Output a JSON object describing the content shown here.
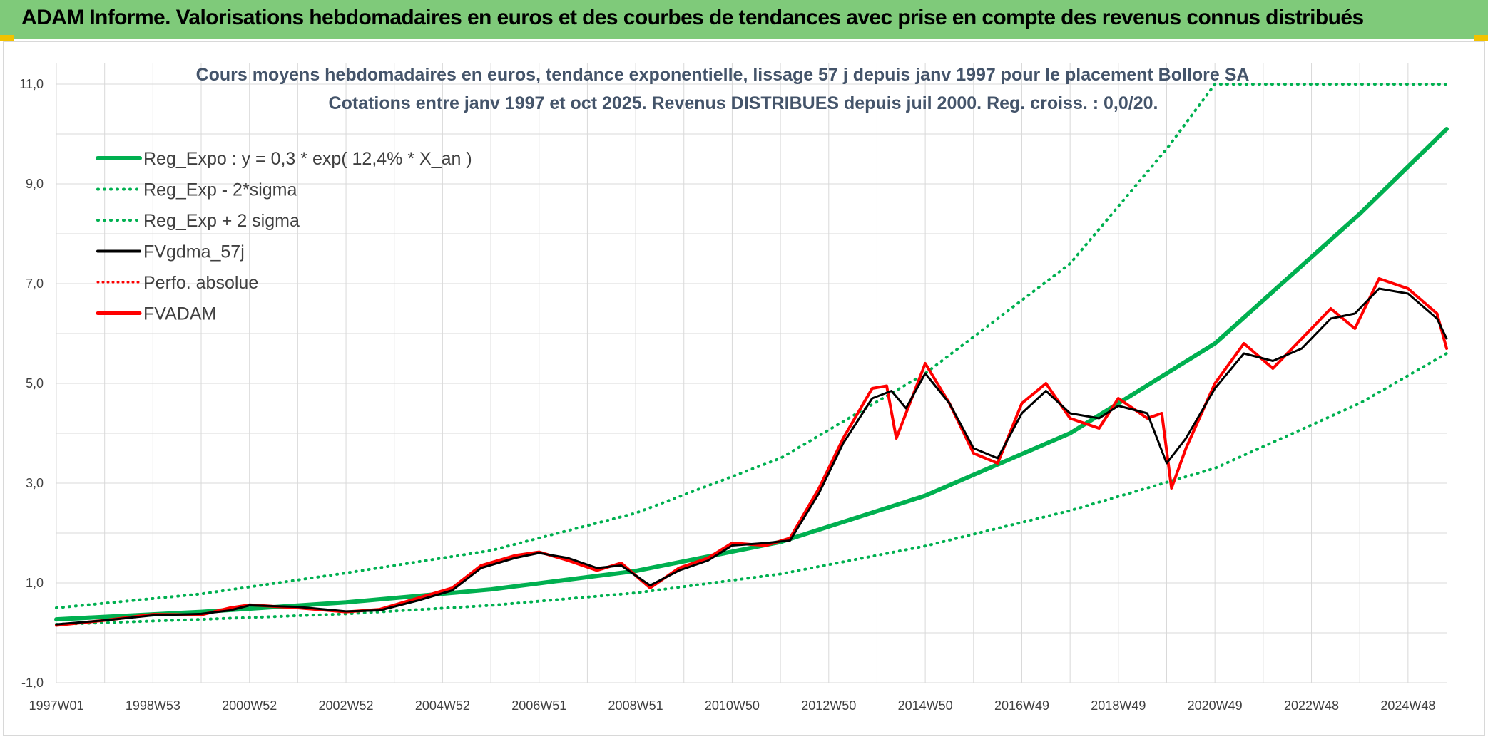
{
  "banner": {
    "title": "ADAM Informe. Valorisations hebdomadaires en euros et des courbes de tendances avec prise en compte des revenus connus distribués"
  },
  "colors": {
    "banner": "#7fca7a",
    "trend": "#00b050",
    "smoothed": "#000000",
    "adam": "#ff0000",
    "grid": "#d9d9d9"
  },
  "chart_data": {
    "type": "line",
    "title": "Cours moyens hebdomadaires en euros, tendance exponentielle, lissage 57 j depuis janv 1997 pour le placement Bollore SA",
    "subtitle": "Cotations entre janv 1997 et oct 2025. Revenus DISTRIBUES depuis juil 2000. Reg. croiss. : 0,0/20.",
    "xlabel": "",
    "ylabel": "",
    "ylim": [
      -1,
      11
    ],
    "y_ticks": [
      "-1,0",
      "1,0",
      "3,0",
      "5,0",
      "7,0",
      "9,0",
      "11,0"
    ],
    "x_tick_labels": [
      "1997W01",
      "1998W53",
      "2000W52",
      "2002W52",
      "2004W52",
      "2006W51",
      "2008W51",
      "2010W50",
      "2012W50",
      "2014W50",
      "2016W49",
      "2018W49",
      "2020W49",
      "2022W48",
      "2024W48"
    ],
    "x_tick_years": [
      1997.0,
      1999.0,
      2001.0,
      2003.0,
      2005.0,
      2007.0,
      2009.0,
      2011.0,
      2013.0,
      2015.0,
      2017.0,
      2019.0,
      2021.0,
      2023.0,
      2025.0
    ],
    "x_range": [
      1997.0,
      2025.8
    ],
    "legend": [
      {
        "label": "Reg_Expo : y = 0,3 * exp( 12,4% *  X_an )",
        "style": "solid-green"
      },
      {
        "label": "Reg_Exp - 2*sigma",
        "style": "dotted-green"
      },
      {
        "label": "Reg_Exp + 2 sigma",
        "style": "dotted-green"
      },
      {
        "label": "FVgdma_57j",
        "style": "solid-black"
      },
      {
        "label": "Perfo. absolue",
        "style": "dotted-red"
      },
      {
        "label": "FVADAM",
        "style": "solid-red"
      }
    ],
    "series": [
      {
        "name": "Reg_Expo",
        "x": [
          1997.0,
          2000.0,
          2003.0,
          2006.0,
          2009.0,
          2012.0,
          2015.0,
          2018.0,
          2021.0,
          2024.0,
          2025.8
        ],
        "values": [
          0.27,
          0.42,
          0.61,
          0.87,
          1.24,
          1.82,
          2.75,
          4.0,
          5.8,
          8.4,
          10.1
        ]
      },
      {
        "name": "Reg_Exp - 2*sigma",
        "x": [
          1997.0,
          2000.0,
          2003.0,
          2006.0,
          2009.0,
          2012.0,
          2015.0,
          2018.0,
          2021.0,
          2024.0,
          2025.8
        ],
        "values": [
          0.17,
          0.27,
          0.38,
          0.55,
          0.8,
          1.18,
          1.74,
          2.45,
          3.3,
          4.6,
          5.6
        ]
      },
      {
        "name": "Reg_Exp + 2 sigma",
        "x": [
          1997.0,
          2000.0,
          2003.0,
          2006.0,
          2009.0,
          2012.0,
          2015.0,
          2018.0,
          2020.0,
          2021.0,
          2021.3,
          2025.8
        ],
        "values": [
          0.5,
          0.78,
          1.2,
          1.65,
          2.4,
          3.5,
          5.2,
          7.4,
          9.7,
          11.0,
          11.0,
          11.0
        ]
      },
      {
        "name": "FVgdma_57j",
        "x": [
          1997.0,
          1998.0,
          1999.0,
          2000.0,
          2000.6,
          2001.0,
          2002.0,
          2003.0,
          2003.7,
          2004.5,
          2005.2,
          2005.8,
          2006.5,
          2007.0,
          2007.6,
          2008.2,
          2008.7,
          2009.3,
          2009.9,
          2010.5,
          2011.0,
          2011.7,
          2012.2,
          2012.8,
          2013.3,
          2013.9,
          2014.3,
          2014.6,
          2015.0,
          2015.5,
          2016.0,
          2016.5,
          2017.0,
          2017.5,
          2018.0,
          2018.6,
          2019.0,
          2019.6,
          2020.0,
          2020.4,
          2021.0,
          2021.6,
          2022.2,
          2022.8,
          2023.4,
          2023.9,
          2024.4,
          2025.0,
          2025.6,
          2025.8
        ],
        "values": [
          0.17,
          0.25,
          0.35,
          0.38,
          0.45,
          0.55,
          0.52,
          0.43,
          0.45,
          0.65,
          0.85,
          1.3,
          1.5,
          1.6,
          1.5,
          1.3,
          1.35,
          0.95,
          1.25,
          1.45,
          1.75,
          1.8,
          1.85,
          2.8,
          3.8,
          4.7,
          4.85,
          4.5,
          5.2,
          4.6,
          3.7,
          3.5,
          4.4,
          4.85,
          4.4,
          4.3,
          4.55,
          4.4,
          3.4,
          3.9,
          4.9,
          5.6,
          5.45,
          5.7,
          6.3,
          6.4,
          6.9,
          6.8,
          6.3,
          5.9
        ]
      },
      {
        "name": "FVADAM",
        "x": [
          1997.0,
          1998.0,
          1999.0,
          2000.0,
          2000.6,
          2001.0,
          2002.0,
          2003.0,
          2003.7,
          2004.5,
          2005.2,
          2005.8,
          2006.5,
          2007.0,
          2007.6,
          2008.2,
          2008.7,
          2009.3,
          2009.9,
          2010.5,
          2011.0,
          2011.7,
          2012.2,
          2012.8,
          2013.3,
          2013.9,
          2014.2,
          2014.4,
          2014.6,
          2015.0,
          2015.5,
          2016.0,
          2016.5,
          2017.0,
          2017.5,
          2018.0,
          2018.6,
          2019.0,
          2019.6,
          2019.9,
          2020.1,
          2020.4,
          2021.0,
          2021.6,
          2022.2,
          2022.8,
          2023.4,
          2023.9,
          2024.4,
          2025.0,
          2025.6,
          2025.8
        ],
        "values": [
          0.15,
          0.25,
          0.37,
          0.36,
          0.5,
          0.56,
          0.5,
          0.42,
          0.47,
          0.7,
          0.9,
          1.35,
          1.55,
          1.62,
          1.45,
          1.25,
          1.4,
          0.9,
          1.3,
          1.5,
          1.8,
          1.75,
          1.9,
          2.9,
          3.9,
          4.9,
          4.95,
          3.9,
          4.4,
          5.4,
          4.6,
          3.6,
          3.4,
          4.6,
          5.0,
          4.3,
          4.1,
          4.7,
          4.3,
          4.4,
          2.9,
          3.7,
          5.0,
          5.8,
          5.3,
          5.9,
          6.5,
          6.1,
          7.1,
          6.9,
          6.4,
          5.7
        ]
      }
    ]
  }
}
